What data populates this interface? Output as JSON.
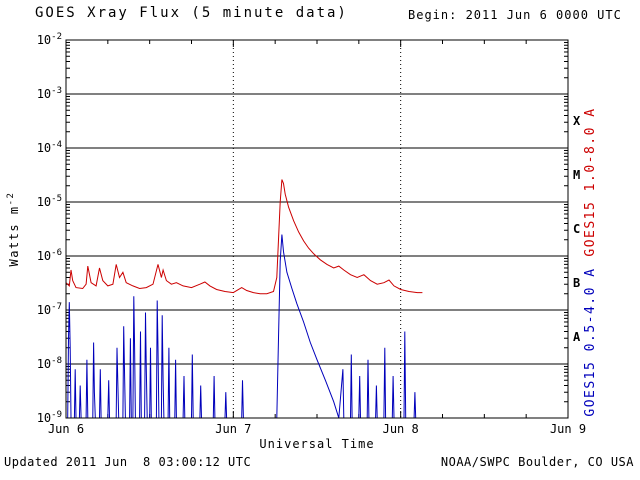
{
  "header": {
    "title": "GOES Xray Flux (5 minute data)",
    "begin_label": "Begin: 2011 Jun 6 0000 UTC"
  },
  "footer": {
    "updated": "Updated 2011 Jun  8 03:00:12 UTC",
    "credit": "NOAA/SWPC Boulder, CO USA"
  },
  "colors": {
    "long_channel": "#cc0000",
    "short_channel": "#0000bb",
    "axis": "#000000",
    "background": "#ffffff"
  },
  "chart_data": {
    "type": "line",
    "title": "GOES Xray Flux (5 minute data)",
    "xlabel": "Universal Time",
    "ylabel_base": "Watts m",
    "ylabel_exp": "-2",
    "x_range_days": [
      0,
      3
    ],
    "x_ticks": [
      {
        "t": 0,
        "label": "Jun 6"
      },
      {
        "t": 1,
        "label": "Jun 7"
      },
      {
        "t": 2,
        "label": "Jun 8"
      },
      {
        "t": 3,
        "label": "Jun 9"
      }
    ],
    "y_log_range": [
      -9,
      -2
    ],
    "y_tick_exponents": [
      -2,
      -3,
      -4,
      -5,
      -6,
      -7,
      -8,
      -9
    ],
    "grid": {
      "horizontal": "solid",
      "vertical": "dotted"
    },
    "class_bands": [
      {
        "label": "X",
        "center_exp": -3.5
      },
      {
        "label": "M",
        "center_exp": -4.5
      },
      {
        "label": "C",
        "center_exp": -5.5
      },
      {
        "label": "B",
        "center_exp": -6.5
      },
      {
        "label": "A",
        "center_exp": -7.5
      }
    ],
    "right_axis_labels": [
      {
        "text": "GOES15 1.0-8.0 A",
        "color": "#cc0000"
      },
      {
        "text": "GOES15 0.5-4.0 A",
        "color": "#0000bb"
      }
    ],
    "series": [
      {
        "name": "GOES15 0.5-4.0 A",
        "color": "#0000bb",
        "points": [
          [
            0.0,
            1e-09
          ],
          [
            0.01,
            1e-09
          ],
          [
            0.015,
            3e-08
          ],
          [
            0.02,
            1.4e-07
          ],
          [
            0.025,
            2e-08
          ],
          [
            0.03,
            1e-09
          ],
          [
            0.05,
            1e-09
          ],
          [
            0.055,
            8e-09
          ],
          [
            0.06,
            1e-09
          ],
          [
            0.08,
            1e-09
          ],
          [
            0.085,
            4e-09
          ],
          [
            0.09,
            1e-09
          ],
          [
            0.12,
            1e-09
          ],
          [
            0.125,
            1.2e-08
          ],
          [
            0.13,
            1e-09
          ],
          [
            0.16,
            1e-09
          ],
          [
            0.165,
            2.5e-08
          ],
          [
            0.17,
            3e-09
          ],
          [
            0.175,
            1e-09
          ],
          [
            0.2,
            1e-09
          ],
          [
            0.205,
            8e-09
          ],
          [
            0.21,
            1e-09
          ],
          [
            0.25,
            1e-09
          ],
          [
            0.255,
            5e-09
          ],
          [
            0.26,
            1e-09
          ],
          [
            0.3,
            1e-09
          ],
          [
            0.305,
            2e-08
          ],
          [
            0.31,
            4e-09
          ],
          [
            0.315,
            1e-09
          ],
          [
            0.34,
            1e-09
          ],
          [
            0.345,
            5e-08
          ],
          [
            0.35,
            6e-09
          ],
          [
            0.355,
            1e-09
          ],
          [
            0.38,
            1e-09
          ],
          [
            0.385,
            3e-08
          ],
          [
            0.39,
            1e-09
          ],
          [
            0.4,
            1e-09
          ],
          [
            0.405,
            1.8e-07
          ],
          [
            0.41,
            2e-08
          ],
          [
            0.415,
            1e-09
          ],
          [
            0.44,
            1e-09
          ],
          [
            0.445,
            4e-08
          ],
          [
            0.45,
            1e-09
          ],
          [
            0.47,
            1e-09
          ],
          [
            0.475,
            9e-08
          ],
          [
            0.48,
            8e-09
          ],
          [
            0.485,
            1e-09
          ],
          [
            0.5,
            1e-09
          ],
          [
            0.505,
            2e-08
          ],
          [
            0.51,
            1e-09
          ],
          [
            0.54,
            1e-09
          ],
          [
            0.545,
            1.5e-07
          ],
          [
            0.55,
            2e-08
          ],
          [
            0.555,
            1e-09
          ],
          [
            0.57,
            1e-09
          ],
          [
            0.575,
            8e-08
          ],
          [
            0.58,
            5e-09
          ],
          [
            0.585,
            1e-09
          ],
          [
            0.61,
            1e-09
          ],
          [
            0.615,
            2e-08
          ],
          [
            0.62,
            1e-09
          ],
          [
            0.65,
            1e-09
          ],
          [
            0.655,
            1.2e-08
          ],
          [
            0.66,
            1e-09
          ],
          [
            0.7,
            1e-09
          ],
          [
            0.705,
            6e-09
          ],
          [
            0.71,
            1e-09
          ],
          [
            0.75,
            1e-09
          ],
          [
            0.755,
            1.5e-08
          ],
          [
            0.76,
            1e-09
          ],
          [
            0.8,
            1e-09
          ],
          [
            0.805,
            4e-09
          ],
          [
            0.81,
            1e-09
          ],
          [
            0.88,
            1e-09
          ],
          [
            0.885,
            6e-09
          ],
          [
            0.89,
            1e-09
          ],
          [
            0.95,
            1e-09
          ],
          [
            0.955,
            3e-09
          ],
          [
            0.96,
            1e-09
          ],
          [
            1.05,
            1e-09
          ],
          [
            1.055,
            5e-09
          ],
          [
            1.06,
            1e-09
          ],
          [
            1.15,
            1e-09
          ],
          [
            1.2,
            1e-09
          ],
          [
            1.26,
            1e-09
          ],
          [
            1.27,
            3e-08
          ],
          [
            1.28,
            8e-07
          ],
          [
            1.29,
            2.5e-06
          ],
          [
            1.3,
            1.2e-06
          ],
          [
            1.32,
            5e-07
          ],
          [
            1.35,
            2.5e-07
          ],
          [
            1.38,
            1.3e-07
          ],
          [
            1.42,
            6e-08
          ],
          [
            1.46,
            2.5e-08
          ],
          [
            1.5,
            1.2e-08
          ],
          [
            1.55,
            5e-09
          ],
          [
            1.6,
            2e-09
          ],
          [
            1.63,
            1e-09
          ],
          [
            1.655,
            8e-09
          ],
          [
            1.66,
            1e-09
          ],
          [
            1.7,
            1e-09
          ],
          [
            1.705,
            1.5e-08
          ],
          [
            1.71,
            1e-09
          ],
          [
            1.75,
            1e-09
          ],
          [
            1.755,
            6e-09
          ],
          [
            1.76,
            1e-09
          ],
          [
            1.8,
            1e-09
          ],
          [
            1.805,
            1.2e-08
          ],
          [
            1.81,
            1e-09
          ],
          [
            1.85,
            1e-09
          ],
          [
            1.855,
            4e-09
          ],
          [
            1.86,
            1e-09
          ],
          [
            1.9,
            1e-09
          ],
          [
            1.905,
            2e-08
          ],
          [
            1.91,
            1e-09
          ],
          [
            1.95,
            1e-09
          ],
          [
            1.955,
            6e-09
          ],
          [
            1.96,
            1e-09
          ],
          [
            2.02,
            1e-09
          ],
          [
            2.025,
            4e-08
          ],
          [
            2.03,
            1e-09
          ],
          [
            2.08,
            1e-09
          ],
          [
            2.085,
            3e-09
          ],
          [
            2.09,
            1e-09
          ],
          [
            2.13,
            1e-09
          ]
        ]
      },
      {
        "name": "GOES15 1.0-8.0 A",
        "color": "#cc0000",
        "points": [
          [
            0.0,
            3.2e-07
          ],
          [
            0.02,
            2.8e-07
          ],
          [
            0.03,
            5.5e-07
          ],
          [
            0.04,
            3.5e-07
          ],
          [
            0.06,
            2.6e-07
          ],
          [
            0.1,
            2.5e-07
          ],
          [
            0.12,
            3e-07
          ],
          [
            0.13,
            6.5e-07
          ],
          [
            0.15,
            3.2e-07
          ],
          [
            0.18,
            2.8e-07
          ],
          [
            0.2,
            6e-07
          ],
          [
            0.22,
            3.5e-07
          ],
          [
            0.25,
            2.8e-07
          ],
          [
            0.28,
            3e-07
          ],
          [
            0.3,
            7e-07
          ],
          [
            0.32,
            4e-07
          ],
          [
            0.34,
            5e-07
          ],
          [
            0.36,
            3.2e-07
          ],
          [
            0.4,
            2.8e-07
          ],
          [
            0.44,
            2.5e-07
          ],
          [
            0.48,
            2.6e-07
          ],
          [
            0.52,
            3e-07
          ],
          [
            0.55,
            7e-07
          ],
          [
            0.57,
            4e-07
          ],
          [
            0.58,
            5.5e-07
          ],
          [
            0.6,
            3.5e-07
          ],
          [
            0.63,
            3e-07
          ],
          [
            0.66,
            3.2e-07
          ],
          [
            0.7,
            2.8e-07
          ],
          [
            0.75,
            2.6e-07
          ],
          [
            0.8,
            3e-07
          ],
          [
            0.83,
            3.3e-07
          ],
          [
            0.86,
            2.8e-07
          ],
          [
            0.9,
            2.4e-07
          ],
          [
            0.95,
            2.2e-07
          ],
          [
            1.0,
            2.1e-07
          ],
          [
            1.05,
            2.6e-07
          ],
          [
            1.08,
            2.3e-07
          ],
          [
            1.12,
            2.1e-07
          ],
          [
            1.16,
            2e-07
          ],
          [
            1.2,
            2e-07
          ],
          [
            1.24,
            2.2e-07
          ],
          [
            1.26,
            4e-07
          ],
          [
            1.27,
            2e-06
          ],
          [
            1.28,
            1e-05
          ],
          [
            1.29,
            2.6e-05
          ],
          [
            1.3,
            2.2e-05
          ],
          [
            1.31,
            1.4e-05
          ],
          [
            1.33,
            8e-06
          ],
          [
            1.36,
            4.5e-06
          ],
          [
            1.39,
            2.8e-06
          ],
          [
            1.42,
            1.9e-06
          ],
          [
            1.45,
            1.4e-06
          ],
          [
            1.48,
            1.1e-06
          ],
          [
            1.52,
            8.5e-07
          ],
          [
            1.56,
            7e-07
          ],
          [
            1.6,
            6e-07
          ],
          [
            1.63,
            6.5e-07
          ],
          [
            1.66,
            5.5e-07
          ],
          [
            1.7,
            4.5e-07
          ],
          [
            1.74,
            4e-07
          ],
          [
            1.78,
            4.5e-07
          ],
          [
            1.82,
            3.5e-07
          ],
          [
            1.86,
            3e-07
          ],
          [
            1.9,
            3.2e-07
          ],
          [
            1.93,
            3.6e-07
          ],
          [
            1.96,
            2.8e-07
          ],
          [
            2.0,
            2.4e-07
          ],
          [
            2.05,
            2.2e-07
          ],
          [
            2.1,
            2.1e-07
          ],
          [
            2.13,
            2.1e-07
          ]
        ]
      }
    ]
  }
}
